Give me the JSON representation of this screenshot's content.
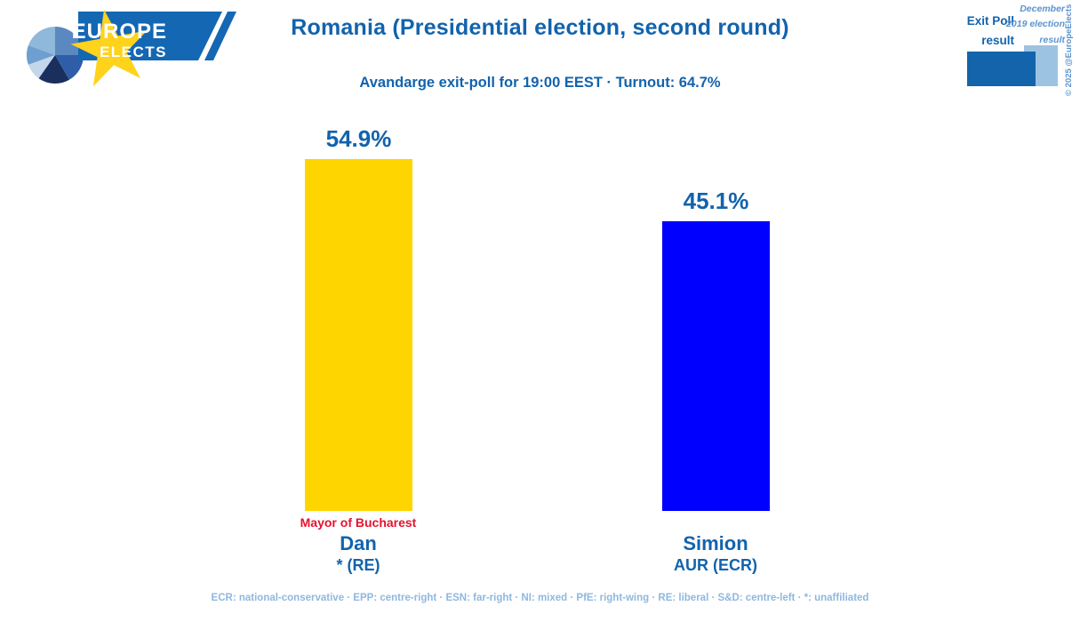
{
  "brand": {
    "europe": "EUROPE",
    "elects": "ELECTS"
  },
  "header": {
    "title": "Romania (Presidential election, second round)",
    "subtitle": "Avandarge exit-poll for 19:00 EEST · Turnout: 64.7%"
  },
  "legend": {
    "exit_poll_label": "Exit Poll result",
    "previous_label": "December 2019 election result"
  },
  "meta": {
    "copyright": "© 2025 @EuropeElects"
  },
  "chart_data": {
    "type": "bar",
    "title": "Romania (Presidential election, second round)",
    "subtitle": "Avandarge exit-poll for 19:00 EEST · Turnout: 64.7%",
    "categories": [
      "Dan",
      "Simion"
    ],
    "series": [
      {
        "name": "Exit Poll result",
        "values": [
          54.9,
          45.1
        ]
      }
    ],
    "bars": [
      {
        "candidate": "Dan",
        "party": "* (RE)",
        "note": "Mayor of Bucharest",
        "value": 54.9,
        "label": "54.9%",
        "color": "#ffd500"
      },
      {
        "candidate": "Simion",
        "party": "AUR (ECR)",
        "note": "",
        "value": 45.1,
        "label": "45.1%",
        "color": "#0000fe"
      }
    ],
    "ylim": [
      0,
      60
    ],
    "grid": false,
    "axes_shown": false,
    "legend_position": "top-right"
  },
  "footer": {
    "glossary": "ECR: national-conservative · EPP: centre-right · ESN: far-right · NI: mixed · PfE: right-wing · RE: liberal · S&D: centre-left · *: unaffiliated"
  },
  "colors": {
    "title": "#1263ad",
    "accent_light": "#5b94cf",
    "value_label": "#1263ad",
    "note": "#e8112d",
    "footer": "#8fb8de",
    "legend_dark": "#1464ac",
    "legend_light": "#9dc3e2",
    "banner": "#1467b3",
    "star": "#ffd21c"
  }
}
